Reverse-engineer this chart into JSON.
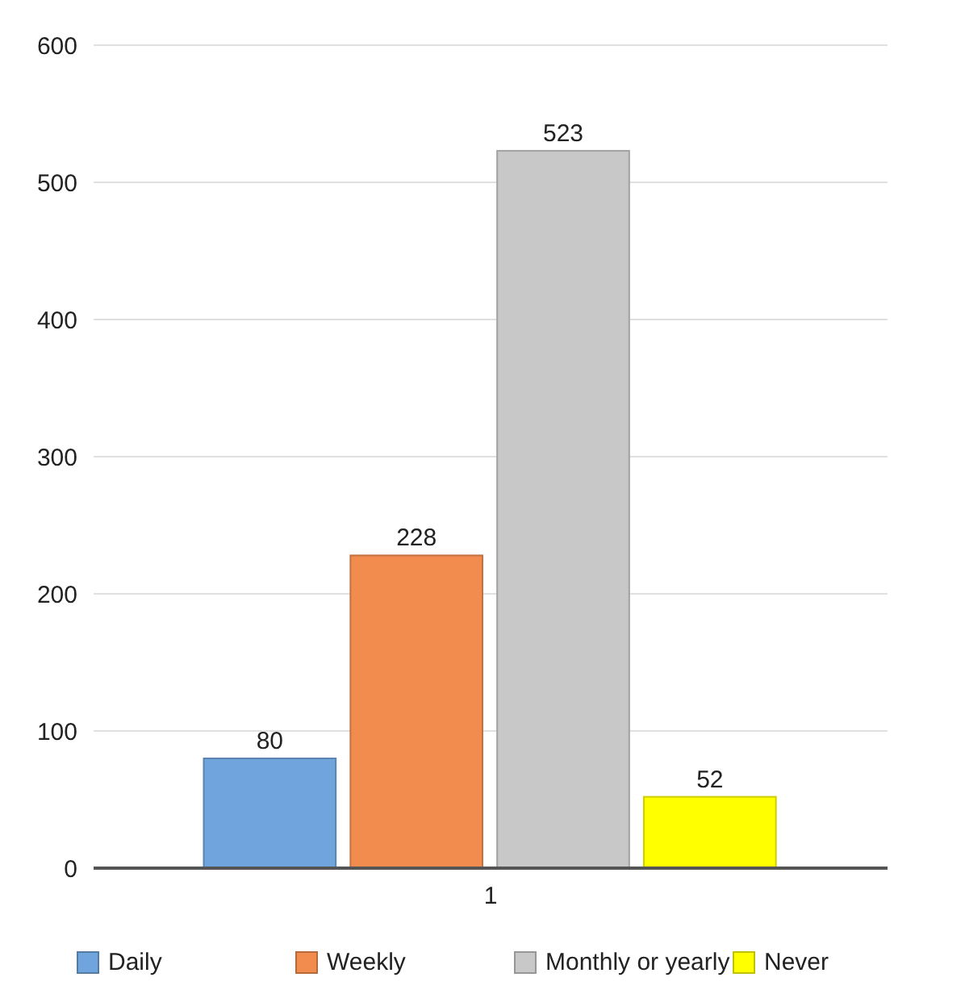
{
  "chart_data": {
    "type": "bar",
    "categories": [
      "1"
    ],
    "series": [
      {
        "name": "Daily",
        "color": "#6fa5dc",
        "values": [
          80
        ]
      },
      {
        "name": "Weekly",
        "color": "#f28c4e",
        "values": [
          228
        ]
      },
      {
        "name": "Monthly or yearly",
        "color": "#c8c8c8",
        "values": [
          523
        ]
      },
      {
        "name": "Never",
        "color": "#ffff00",
        "values": [
          52
        ]
      }
    ],
    "ylim": [
      0,
      600
    ],
    "yticks": [
      0,
      100,
      200,
      300,
      400,
      500,
      600
    ],
    "grid": "y",
    "legend": "bottom",
    "data_labels": true
  }
}
